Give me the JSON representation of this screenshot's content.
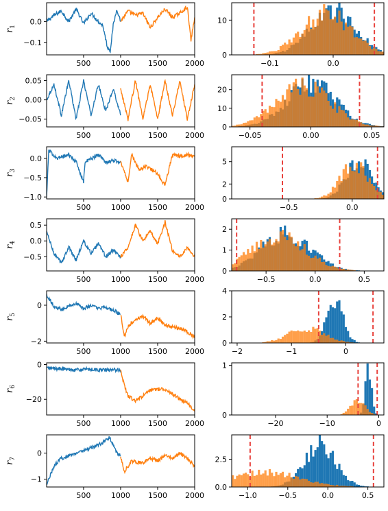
{
  "chart_data": {
    "type": "line+histogram grid",
    "colors": {
      "first_half": "#1f77b4",
      "second_half": "#ff7f0e",
      "threshold": "#e8413c"
    },
    "rows": [
      {
        "label": "r",
        "sub": "1",
        "trace": {
          "xlim": [
            1,
            2000
          ],
          "ylim": [
            -0.16,
            0.09
          ],
          "xticks": [
            500,
            1000,
            1500,
            2000
          ],
          "yticks": [
            0.0,
            -0.1
          ],
          "ytick_labels": [
            "0.0",
            "−0.1"
          ],
          "first_half": [
            [
              1,
              0.0
            ],
            [
              100,
              0.03
            ],
            [
              200,
              0.05
            ],
            [
              300,
              0.0
            ],
            [
              400,
              0.06
            ],
            [
              500,
              -0.01
            ],
            [
              600,
              0.04
            ],
            [
              700,
              0.0
            ],
            [
              760,
              -0.02
            ],
            [
              820,
              -0.12
            ],
            [
              860,
              -0.14
            ],
            [
              900,
              -0.02
            ],
            [
              950,
              0.06
            ],
            [
              1000,
              0.0
            ]
          ],
          "second_half": [
            [
              1000,
              0.0
            ],
            [
              1100,
              0.05
            ],
            [
              1200,
              0.03
            ],
            [
              1300,
              0.04
            ],
            [
              1400,
              -0.03
            ],
            [
              1500,
              0.02
            ],
            [
              1600,
              0.06
            ],
            [
              1700,
              0.02
            ],
            [
              1800,
              0.04
            ],
            [
              1900,
              0.07
            ],
            [
              1950,
              -0.09
            ],
            [
              2000,
              0.02
            ]
          ]
        },
        "hist": {
          "xlim": [
            -0.16,
            0.08
          ],
          "ylim": [
            0,
            15
          ],
          "xticks": [
            -0.1,
            0.0
          ],
          "xtick_labels": [
            "−0.1",
            "0.0"
          ],
          "yticks": [
            0,
            10
          ],
          "ytick_labels": [
            "0",
            "10"
          ],
          "thresholds": [
            -0.125,
            0.065
          ],
          "center": 0.0,
          "sd": 0.035,
          "peak": 13
        }
      },
      {
        "label": "r",
        "sub": "2",
        "trace": {
          "xlim": [
            1,
            2000
          ],
          "ylim": [
            -0.07,
            0.065
          ],
          "xticks": [
            500,
            1000,
            1500,
            2000
          ],
          "yticks": [
            0.05,
            0.0,
            -0.05
          ],
          "ytick_labels": [
            "0.05",
            "0.00",
            "−0.05"
          ],
          "first_half": [
            [
              1,
              0.0
            ],
            [
              100,
              0.04
            ],
            [
              200,
              -0.04
            ],
            [
              300,
              0.05
            ],
            [
              400,
              -0.05
            ],
            [
              500,
              0.05
            ],
            [
              600,
              -0.04
            ],
            [
              700,
              0.04
            ],
            [
              800,
              -0.03
            ],
            [
              900,
              0.03
            ],
            [
              1000,
              -0.04
            ]
          ],
          "second_half": [
            [
              1000,
              0.03
            ],
            [
              1100,
              -0.05
            ],
            [
              1200,
              0.05
            ],
            [
              1300,
              -0.05
            ],
            [
              1400,
              0.04
            ],
            [
              1500,
              -0.05
            ],
            [
              1600,
              0.05
            ],
            [
              1700,
              -0.04
            ],
            [
              1800,
              0.05
            ],
            [
              1900,
              -0.05
            ],
            [
              2000,
              0.04
            ]
          ]
        },
        "hist": {
          "xlim": [
            -0.065,
            0.06
          ],
          "ylim": [
            0,
            28
          ],
          "xticks": [
            -0.05,
            0.0,
            0.05
          ],
          "xtick_labels": [
            "−0.05",
            "0.00",
            "0.05"
          ],
          "yticks": [
            0,
            10,
            20
          ],
          "ytick_labels": [
            "0",
            "10",
            "20"
          ],
          "thresholds": [
            -0.04,
            0.04
          ],
          "center": 0.0,
          "sd": 0.02,
          "peak": 24
        }
      },
      {
        "label": "r",
        "sub": "3",
        "trace": {
          "xlim": [
            1,
            2000
          ],
          "ylim": [
            -1.05,
            0.3
          ],
          "xticks": [
            500,
            1000,
            1500,
            2000
          ],
          "yticks": [
            0.0,
            -0.5,
            -1.0
          ],
          "ytick_labels": [
            "0.0",
            "−0.5",
            "−1.0"
          ],
          "first_half": [
            [
              1,
              -1.0
            ],
            [
              30,
              0.2
            ],
            [
              150,
              0.0
            ],
            [
              300,
              0.1
            ],
            [
              400,
              -0.1
            ],
            [
              500,
              -0.6
            ],
            [
              520,
              -0.1
            ],
            [
              700,
              0.1
            ],
            [
              800,
              -0.1
            ],
            [
              900,
              -0.05
            ],
            [
              1000,
              -0.1
            ]
          ],
          "second_half": [
            [
              1000,
              -0.1
            ],
            [
              1100,
              -0.6
            ],
            [
              1150,
              0.1
            ],
            [
              1250,
              -0.3
            ],
            [
              1350,
              -0.2
            ],
            [
              1500,
              -0.4
            ],
            [
              1600,
              -0.7
            ],
            [
              1700,
              0.1
            ],
            [
              1800,
              0.05
            ],
            [
              1900,
              0.1
            ],
            [
              2000,
              0.05
            ]
          ]
        },
        "hist": {
          "xlim": [
            -0.95,
            0.25
          ],
          "ylim": [
            0,
            7
          ],
          "xticks": [
            -0.5,
            0.0
          ],
          "xtick_labels": [
            "−0.5",
            "0.0"
          ],
          "yticks": [
            0,
            2,
            5
          ],
          "ytick_labels": [
            "0",
            "2",
            "5"
          ],
          "thresholds": [
            -0.55,
            0.2
          ],
          "center": 0.05,
          "sd": 0.1,
          "peak": 5
        }
      },
      {
        "label": "r",
        "sub": "4",
        "trace": {
          "xlim": [
            1,
            2000
          ],
          "ylim": [
            -0.95,
            0.7
          ],
          "xticks": [
            500,
            1000,
            1500,
            2000
          ],
          "yticks": [
            0.5,
            0.0,
            -0.5
          ],
          "ytick_labels": [
            "0.5",
            "0.0",
            "−0.5"
          ],
          "first_half": [
            [
              1,
              0.3
            ],
            [
              100,
              -0.4
            ],
            [
              200,
              -0.7
            ],
            [
              300,
              -0.2
            ],
            [
              400,
              -0.6
            ],
            [
              500,
              0.0
            ],
            [
              600,
              -0.4
            ],
            [
              700,
              -0.1
            ],
            [
              800,
              -0.5
            ],
            [
              900,
              -0.3
            ],
            [
              1000,
              -0.5
            ]
          ],
          "second_half": [
            [
              1000,
              -0.5
            ],
            [
              1100,
              -0.2
            ],
            [
              1200,
              0.5
            ],
            [
              1300,
              0.0
            ],
            [
              1400,
              0.3
            ],
            [
              1500,
              -0.1
            ],
            [
              1600,
              0.6
            ],
            [
              1700,
              -0.3
            ],
            [
              1800,
              -0.5
            ],
            [
              1900,
              -0.2
            ],
            [
              2000,
              -0.5
            ]
          ]
        },
        "hist": {
          "xlim": [
            -0.85,
            0.7
          ],
          "ylim": [
            0,
            2.5
          ],
          "xticks": [
            -0.5,
            0.0,
            0.5
          ],
          "xtick_labels": [
            "−0.5",
            "0.0",
            "0.5"
          ],
          "yticks": [
            0,
            1,
            2
          ],
          "ytick_labels": [
            "0",
            "1",
            "2"
          ],
          "thresholds": [
            -0.8,
            0.25
          ],
          "center": -0.3,
          "sd": 0.25,
          "peak": 1.8
        }
      },
      {
        "label": "r",
        "sub": "5",
        "trace": {
          "xlim": [
            1,
            2000
          ],
          "ylim": [
            -2.1,
            0.8
          ],
          "xticks": [
            500,
            1000,
            1500,
            2000
          ],
          "yticks": [
            0,
            -2
          ],
          "ytick_labels": [
            "0",
            "−2"
          ],
          "first_half": [
            [
              1,
              0.6
            ],
            [
              100,
              -0.1
            ],
            [
              200,
              -0.2
            ],
            [
              400,
              0.1
            ],
            [
              500,
              -0.2
            ],
            [
              600,
              0.0
            ],
            [
              700,
              -0.2
            ],
            [
              800,
              -0.1
            ],
            [
              900,
              -0.3
            ],
            [
              1000,
              -0.5
            ]
          ],
          "second_half": [
            [
              1000,
              -0.5
            ],
            [
              1050,
              -1.8
            ],
            [
              1100,
              -1.2
            ],
            [
              1200,
              -0.8
            ],
            [
              1300,
              -0.6
            ],
            [
              1400,
              -1.0
            ],
            [
              1500,
              -0.7
            ],
            [
              1600,
              -1.1
            ],
            [
              1700,
              -1.2
            ],
            [
              1800,
              -1.3
            ],
            [
              1900,
              -1.5
            ],
            [
              2000,
              -1.8
            ]
          ]
        },
        "hist": {
          "xlim": [
            -2.1,
            0.7
          ],
          "ylim": [
            0,
            4
          ],
          "xticks": [
            -2,
            -1,
            0
          ],
          "xtick_labels": [
            "−2",
            "−1",
            "0"
          ],
          "yticks": [
            0,
            2,
            4
          ],
          "ytick_labels": [
            "0",
            "2",
            "4"
          ],
          "thresholds": [
            -0.5,
            0.5
          ],
          "center": -0.2,
          "sd": 0.15,
          "peak": 3.2
        }
      },
      {
        "label": "r",
        "sub": "6",
        "trace": {
          "xlim": [
            1,
            2000
          ],
          "ylim": [
            -29,
            1
          ],
          "xticks": [
            500,
            1000,
            1500,
            2000
          ],
          "yticks": [
            0,
            -20
          ],
          "ytick_labels": [
            "0",
            "−20"
          ],
          "first_half": [
            [
              1,
              -2
            ],
            [
              200,
              -2.5
            ],
            [
              400,
              -3
            ],
            [
              600,
              -2.8
            ],
            [
              800,
              -3.2
            ],
            [
              1000,
              -3
            ]
          ],
          "second_half": [
            [
              1000,
              -3
            ],
            [
              1050,
              -12
            ],
            [
              1100,
              -18
            ],
            [
              1200,
              -21
            ],
            [
              1300,
              -18
            ],
            [
              1400,
              -15
            ],
            [
              1500,
              -14
            ],
            [
              1600,
              -14
            ],
            [
              1700,
              -17
            ],
            [
              1800,
              -20
            ],
            [
              1900,
              -22
            ],
            [
              2000,
              -27
            ]
          ]
        },
        "hist": {
          "xlim": [
            -28.5,
            1
          ],
          "ylim": [
            0,
            1.05
          ],
          "xticks": [
            -20,
            -10,
            0
          ],
          "xtick_labels": [
            "−20",
            "−10",
            "0"
          ],
          "yticks": [
            0,
            1
          ],
          "ytick_labels": [
            "0",
            "1"
          ],
          "thresholds": [
            -4,
            -0.3
          ],
          "center": -2,
          "sd": 0.6,
          "peak": 0.9
        }
      },
      {
        "label": "r",
        "sub": "7",
        "trace": {
          "xlim": [
            1,
            2000
          ],
          "ylim": [
            -1.3,
            0.7
          ],
          "xticks": [
            500,
            1000,
            1500,
            2000
          ],
          "yticks": [
            0,
            -1
          ],
          "ytick_labels": [
            "0",
            "−1"
          ],
          "first_half": [
            [
              1,
              -1.2
            ],
            [
              100,
              -0.5
            ],
            [
              200,
              -0.2
            ],
            [
              400,
              0.0
            ],
            [
              600,
              0.2
            ],
            [
              700,
              0.3
            ],
            [
              850,
              0.6
            ],
            [
              950,
              0.0
            ],
            [
              1000,
              -0.1
            ]
          ],
          "second_half": [
            [
              1000,
              -0.1
            ],
            [
              1050,
              -0.7
            ],
            [
              1150,
              -0.3
            ],
            [
              1300,
              -0.4
            ],
            [
              1400,
              -0.2
            ],
            [
              1500,
              -0.3
            ],
            [
              1600,
              -0.1
            ],
            [
              1700,
              -0.2
            ],
            [
              1800,
              0.0
            ],
            [
              1900,
              -0.2
            ],
            [
              2000,
              -0.5
            ]
          ]
        },
        "hist": {
          "xlim": [
            -1.2,
            0.7
          ],
          "ylim": [
            0,
            4.7
          ],
          "xticks": [
            -1.0,
            -0.5,
            0.0,
            0.5
          ],
          "xtick_labels": [
            "−1.0",
            "−0.5",
            "0.0",
            "0.5"
          ],
          "yticks": [
            0.0,
            2.5
          ],
          "ytick_labels": [
            "0.0",
            "2.5"
          ],
          "thresholds": [
            -0.97,
            0.57
          ],
          "center": -0.1,
          "sd": 0.2,
          "peak": 3.8
        }
      }
    ]
  }
}
